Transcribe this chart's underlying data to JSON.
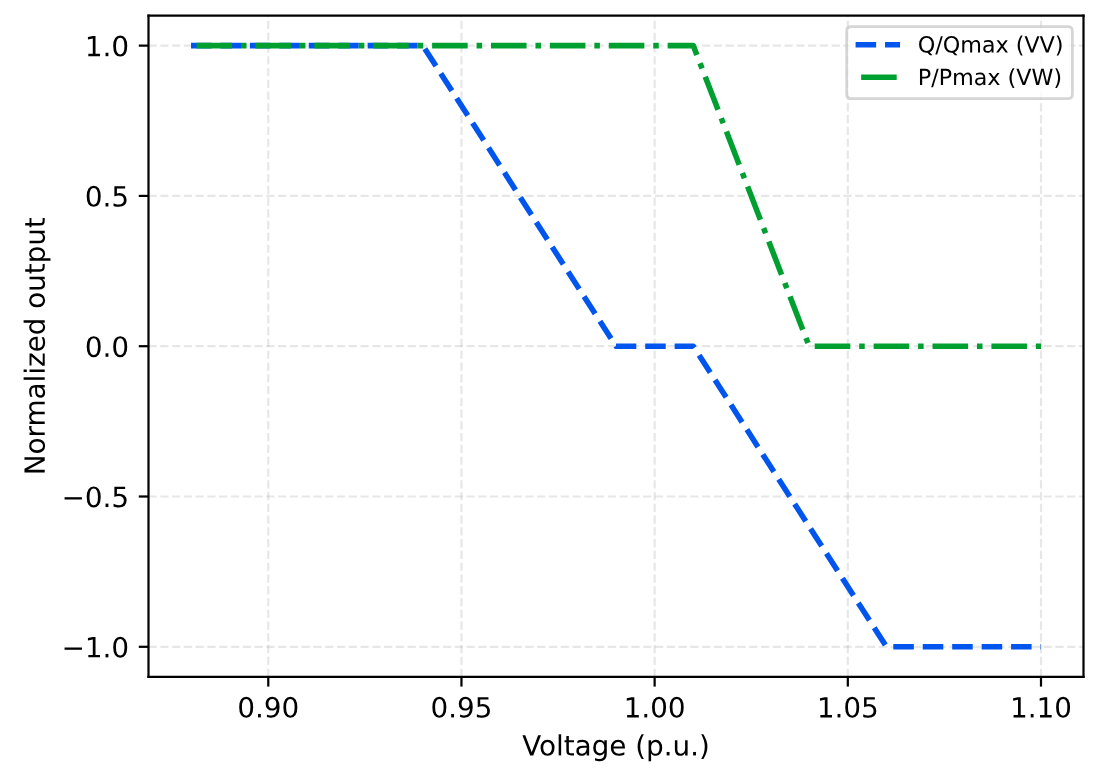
{
  "chart_data": {
    "type": "line",
    "xlabel": "Voltage (p.u.)",
    "ylabel": "Normalized output",
    "series": [
      {
        "name": "Q/Qmax (VV)",
        "color": "#0055ee",
        "x": [
          0.88,
          0.94,
          0.99,
          1.01,
          1.06,
          1.1
        ],
        "values": [
          1,
          1,
          0,
          0,
          -1,
          -1
        ],
        "line_style": "dashed"
      },
      {
        "name": "P/Pmax (VW)",
        "color": "#00a030",
        "x": [
          0.88,
          1.01,
          1.04,
          1.1
        ],
        "values": [
          1,
          1,
          0,
          0
        ],
        "line_style": "dashdot"
      }
    ],
    "xlim": [
      0.869,
      1.111
    ],
    "ylim": [
      -1.1,
      1.1
    ],
    "xticks": [
      {
        "value": 0.9,
        "label": "0.90"
      },
      {
        "value": 0.95,
        "label": "0.95"
      },
      {
        "value": 1.0,
        "label": "1.00"
      },
      {
        "value": 1.05,
        "label": "1.05"
      },
      {
        "value": 1.1,
        "label": "1.10"
      }
    ],
    "yticks": [
      {
        "value": -1.0,
        "label": "−1.0"
      },
      {
        "value": -0.5,
        "label": "−0.5"
      },
      {
        "value": 0.0,
        "label": "0.0"
      },
      {
        "value": 0.5,
        "label": "0.5"
      },
      {
        "value": 1.0,
        "label": "1.0"
      }
    ],
    "grid": true,
    "legend": "top right",
    "marker": "none"
  }
}
